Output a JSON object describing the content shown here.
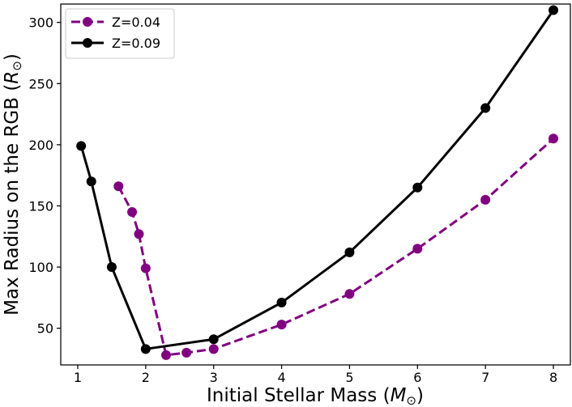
{
  "chart_data": {
    "type": "line",
    "title": "",
    "xlabel": "Initial Stellar Mass (",
    "xlabel_symbol": "M",
    "ylabel": "Max Radius on the RGB (",
    "ylabel_symbol": "R",
    "sun_symbol": "⊙",
    "close_paren": ")",
    "xlim": [
      0.75,
      8.25
    ],
    "ylim": [
      20,
      315
    ],
    "xticks": [
      1,
      2,
      3,
      4,
      5,
      6,
      7,
      8
    ],
    "yticks": [
      50,
      100,
      150,
      200,
      250,
      300
    ],
    "xtick_labels": [
      "1",
      "2",
      "3",
      "4",
      "5",
      "6",
      "7",
      "8"
    ],
    "ytick_labels": [
      "50",
      "100",
      "150",
      "200",
      "250",
      "300"
    ],
    "legend_position": "top-left",
    "series": [
      {
        "name": "Z=0.04",
        "color": "#800080",
        "style": "dashed",
        "x": [
          1.6,
          1.8,
          1.9,
          2.0,
          2.3,
          2.6,
          3.0,
          4.0,
          5.0,
          6.0,
          7.0,
          8.0
        ],
        "y": [
          166,
          145,
          127,
          99,
          28,
          30,
          33,
          53,
          78,
          115,
          155,
          205
        ]
      },
      {
        "name": "Z=0.09",
        "color": "#000000",
        "style": "solid",
        "x": [
          1.05,
          1.2,
          1.5,
          2.0,
          3.0,
          4.0,
          5.0,
          6.0,
          7.0,
          8.0
        ],
        "y": [
          199,
          170,
          100,
          33,
          41,
          71,
          112,
          165,
          230,
          310
        ]
      }
    ]
  }
}
